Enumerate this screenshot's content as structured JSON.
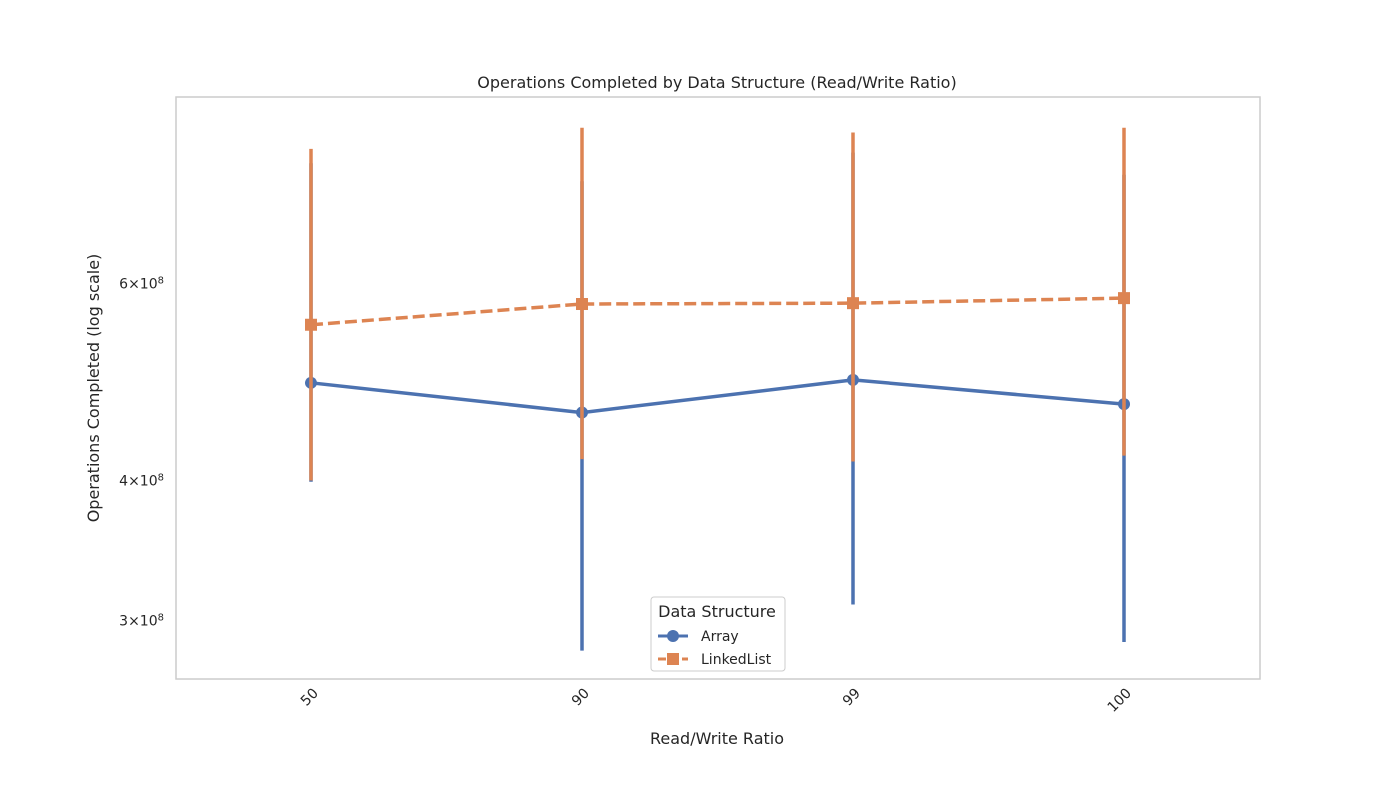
{
  "chart_data": {
    "type": "line",
    "title": "Operations Completed by Data Structure (Read/Write Ratio)",
    "xlabel": "Read/Write Ratio",
    "ylabel": "Operations Completed (log scale)",
    "y_scale": "log",
    "ylim": [
      266000000,
      880000000
    ],
    "yticks": [
      {
        "value": 300000000,
        "label_base": "3",
        "label_exp": "8"
      },
      {
        "value": 400000000,
        "label_base": "4",
        "label_exp": "8"
      },
      {
        "value": 600000000,
        "label_base": "6",
        "label_exp": "8"
      }
    ],
    "categories": [
      "50",
      "90",
      "99",
      "100"
    ],
    "grid": false,
    "legend": {
      "title": "Data Structure",
      "position": "bottom-center"
    },
    "series": [
      {
        "name": "Array",
        "color": "#4c72b0",
        "marker": "circle",
        "linestyle": "solid",
        "values": [
          489000000,
          460000000,
          492000000,
          468000000
        ],
        "ci_low": [
          399000000,
          282000000,
          310000000,
          287000000
        ],
        "ci_high": [
          768000000,
          740000000,
          785000000,
          750000000
        ]
      },
      {
        "name": "LinkedList",
        "color": "#dd8452",
        "marker": "square",
        "linestyle": "dashed",
        "values": [
          551000000,
          575000000,
          576000000,
          582000000
        ],
        "ci_low": [
          400000000,
          418000000,
          416000000,
          421000000
        ],
        "ci_high": [
          791000000,
          826000000,
          818000000,
          826000000
        ]
      }
    ]
  }
}
